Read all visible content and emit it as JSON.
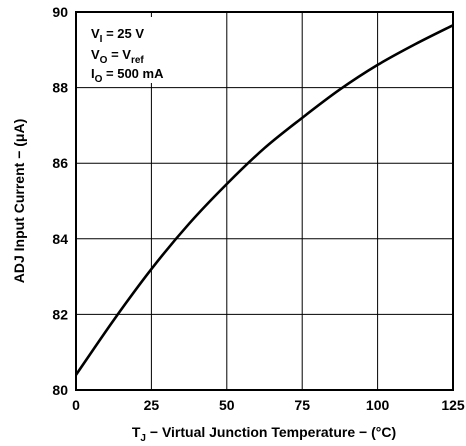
{
  "chart_data": {
    "type": "line",
    "xlabel": {
      "prefix": "T",
      "sub": "J",
      "rest": " − Virtual Junction Temperature − (°C)"
    },
    "ylabel": "ADJ Input Current − (μA)",
    "xlim": [
      0,
      125
    ],
    "ylim": [
      80,
      90
    ],
    "xticks": [
      0,
      25,
      50,
      75,
      100,
      125
    ],
    "yticks": [
      80,
      82,
      84,
      86,
      88,
      90
    ],
    "grid": true,
    "conditions": [
      {
        "main": "V",
        "sub": "I",
        "value": " = 25 V"
      },
      {
        "main": "V",
        "sub": "O",
        "value": " = V",
        "value_sub": "ref"
      },
      {
        "main": "I",
        "sub": "O",
        "value": " = 500 mA"
      }
    ],
    "series": [
      {
        "x": [
          0,
          12.5,
          25,
          37.5,
          50,
          62.5,
          75,
          87.5,
          100,
          112.5,
          125
        ],
        "y": [
          80.4,
          81.85,
          83.2,
          84.4,
          85.45,
          86.4,
          87.2,
          87.95,
          88.6,
          89.15,
          89.65
        ]
      }
    ]
  }
}
